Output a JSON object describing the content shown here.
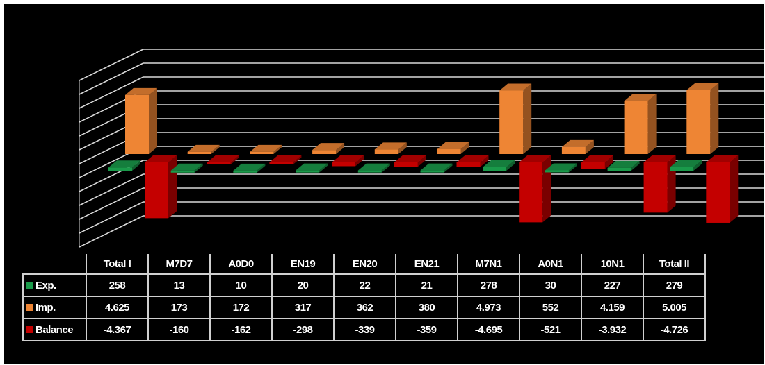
{
  "colors": {
    "exp": "#1a9a4a",
    "imp": "#ee8534",
    "balance": "#c40000",
    "grid": "#d9d9d9",
    "background": "#000000"
  },
  "chart_data": {
    "type": "bar",
    "categories": [
      "Total I",
      "M7D7",
      "A0D0",
      "EN19",
      "EN20",
      "EN21",
      "M7N1",
      "A0N1",
      "10N1",
      "Total II"
    ],
    "series": [
      {
        "name": "Exp.",
        "values": [
          258,
          13,
          10,
          20,
          22,
          21,
          278,
          30,
          227,
          279
        ],
        "labels": [
          "258",
          "13",
          "10",
          "20",
          "22",
          "21",
          "278",
          "30",
          "227",
          "279"
        ]
      },
      {
        "name": "Imp.",
        "values": [
          4625,
          173,
          172,
          317,
          362,
          380,
          4973,
          552,
          4159,
          5005
        ],
        "labels": [
          "4.625",
          "173",
          "172",
          "317",
          "362",
          "380",
          "4.973",
          "552",
          "4.159",
          "5.005"
        ]
      },
      {
        "name": "Balance",
        "values": [
          -4367,
          -160,
          -162,
          -298,
          -339,
          -359,
          -4695,
          -521,
          -3932,
          -4726
        ],
        "labels": [
          "-4.367",
          "-160",
          "-162",
          "-298",
          "-339",
          "-359",
          "-4.695",
          "-521",
          "-3.932",
          "-4.726"
        ]
      }
    ],
    "grid": true,
    "legend": "data table (left column)"
  }
}
